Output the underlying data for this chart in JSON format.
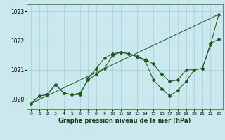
{
  "title": "Graphe pression niveau de la mer (hPa)",
  "background_color": "#cce8ef",
  "grid_color": "#a8d4dc",
  "line_color": "#1e5c1e",
  "xlim": [
    -0.5,
    23.5
  ],
  "ylim": [
    1019.65,
    1023.25
  ],
  "yticks": [
    1020,
    1021,
    1022,
    1023
  ],
  "xticks": [
    0,
    1,
    2,
    3,
    4,
    5,
    6,
    7,
    8,
    9,
    10,
    11,
    12,
    13,
    14,
    15,
    16,
    17,
    18,
    19,
    20,
    21,
    22,
    23
  ],
  "line_main": {
    "x": [
      0,
      1,
      2,
      3,
      4,
      5,
      6,
      7,
      8,
      9,
      10,
      11,
      12,
      13,
      14,
      15,
      16,
      17,
      18,
      19,
      20,
      21,
      22,
      23
    ],
    "y": [
      1019.85,
      1020.1,
      1020.15,
      1020.5,
      1020.2,
      1020.15,
      1020.15,
      1020.7,
      1021.05,
      1021.4,
      1021.55,
      1021.6,
      1021.55,
      1021.45,
      1021.3,
      1020.65,
      1020.35,
      1020.1,
      1020.3,
      1020.6,
      1021.0,
      1021.05,
      1021.85,
      1022.9
    ]
  },
  "line_smooth": {
    "x": [
      0,
      1,
      2,
      3,
      4,
      5,
      6,
      7,
      8,
      9,
      10,
      11,
      12,
      13,
      14,
      15,
      16,
      17,
      18,
      19,
      20,
      21,
      22,
      23
    ],
    "y": [
      1019.85,
      1020.1,
      1020.15,
      1020.5,
      1020.2,
      1020.15,
      1020.2,
      1020.65,
      1020.85,
      1021.05,
      1021.5,
      1021.6,
      1021.55,
      1021.45,
      1021.35,
      1021.2,
      1020.85,
      1020.6,
      1020.65,
      1021.0,
      1021.0,
      1021.05,
      1021.9,
      1022.05
    ]
  },
  "line_straight": {
    "x": [
      0,
      23
    ],
    "y": [
      1019.85,
      1022.9
    ]
  }
}
